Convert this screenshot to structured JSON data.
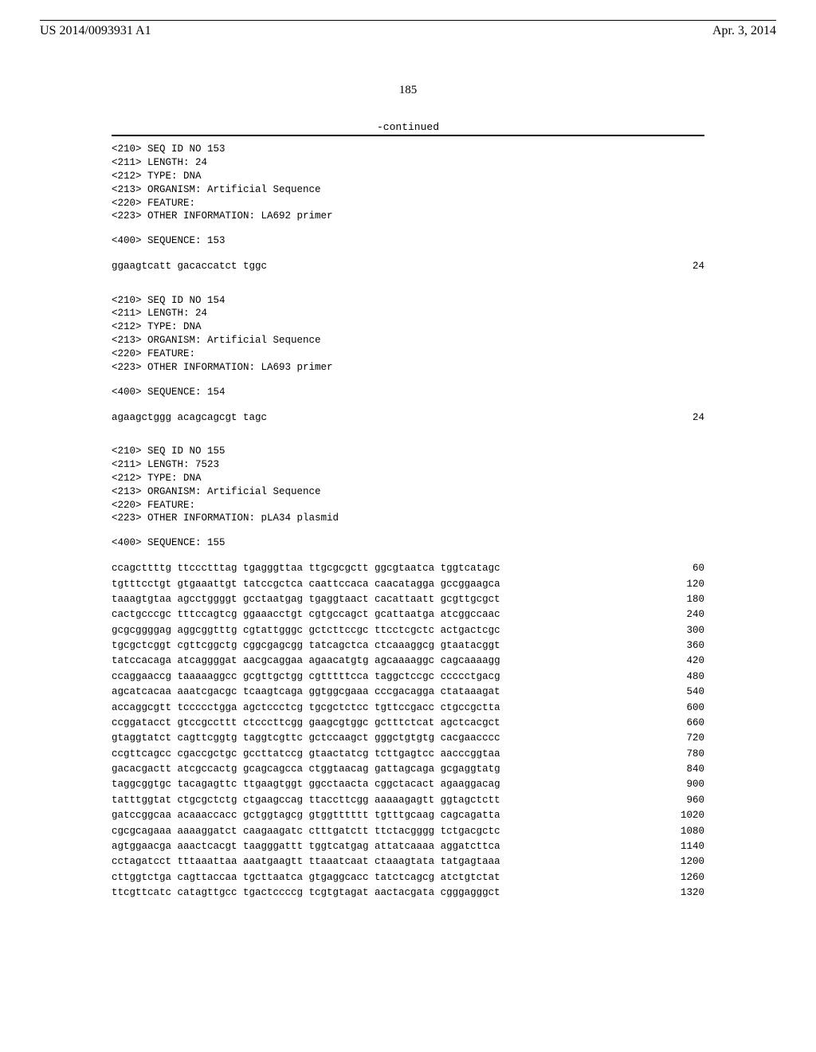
{
  "header": {
    "patent_no": "US 2014/0093931 A1",
    "date": "Apr. 3, 2014",
    "page_number": "185",
    "continued_label": "-continued"
  },
  "blocks": [
    {
      "lines": [
        "<210> SEQ ID NO 153",
        "<211> LENGTH: 24",
        "<212> TYPE: DNA",
        "<213> ORGANISM: Artificial Sequence",
        "<220> FEATURE:",
        "<223> OTHER INFORMATION: LA692 primer"
      ],
      "seq_header": "<400> SEQUENCE: 153",
      "rows": [
        {
          "seq": "ggaagtcatt gacaccatct tggc",
          "num": "24"
        }
      ]
    },
    {
      "lines": [
        "<210> SEQ ID NO 154",
        "<211> LENGTH: 24",
        "<212> TYPE: DNA",
        "<213> ORGANISM: Artificial Sequence",
        "<220> FEATURE:",
        "<223> OTHER INFORMATION: LA693 primer"
      ],
      "seq_header": "<400> SEQUENCE: 154",
      "rows": [
        {
          "seq": "agaagctggg acagcagcgt tagc",
          "num": "24"
        }
      ]
    },
    {
      "lines": [
        "<210> SEQ ID NO 155",
        "<211> LENGTH: 7523",
        "<212> TYPE: DNA",
        "<213> ORGANISM: Artificial Sequence",
        "<220> FEATURE:",
        "<223> OTHER INFORMATION: pLA34 plasmid"
      ],
      "seq_header": "<400> SEQUENCE: 155",
      "rows": [
        {
          "seq": "ccagcttttg ttccctttag tgagggttaa ttgcgcgctt ggcgtaatca tggtcatagc",
          "num": "60"
        },
        {
          "seq": "tgtttcctgt gtgaaattgt tatccgctca caattccaca caacatagga gccggaagca",
          "num": "120"
        },
        {
          "seq": "taaagtgtaa agcctggggt gcctaatgag tgaggtaact cacattaatt gcgttgcgct",
          "num": "180"
        },
        {
          "seq": "cactgcccgc tttccagtcg ggaaacctgt cgtgccagct gcattaatga atcggccaac",
          "num": "240"
        },
        {
          "seq": "gcgcggggag aggcggtttg cgtattgggc gctcttccgc ttcctcgctc actgactcgc",
          "num": "300"
        },
        {
          "seq": "tgcgctcggt cgttcggctg cggcgagcgg tatcagctca ctcaaaggcg gtaatacggt",
          "num": "360"
        },
        {
          "seq": "tatccacaga atcaggggat aacgcaggaa agaacatgtg agcaaaaggc cagcaaaagg",
          "num": "420"
        },
        {
          "seq": "ccaggaaccg taaaaaggcc gcgttgctgg cgtttttcca taggctccgc ccccctgacg",
          "num": "480"
        },
        {
          "seq": "agcatcacaa aaatcgacgc tcaagtcaga ggtggcgaaa cccgacagga ctataaagat",
          "num": "540"
        },
        {
          "seq": "accaggcgtt tccccctgga agctccctcg tgcgctctcc tgttccgacc ctgccgctta",
          "num": "600"
        },
        {
          "seq": "ccggatacct gtccgccttt ctcccttcgg gaagcgtggc gctttctcat agctcacgct",
          "num": "660"
        },
        {
          "seq": "gtaggtatct cagttcggtg taggtcgttc gctccaagct gggctgtgtg cacgaacccc",
          "num": "720"
        },
        {
          "seq": "ccgttcagcc cgaccgctgc gccttatccg gtaactatcg tcttgagtcc aacccggtaa",
          "num": "780"
        },
        {
          "seq": "gacacgactt atcgccactg gcagcagcca ctggtaacag gattagcaga gcgaggtatg",
          "num": "840"
        },
        {
          "seq": "taggcggtgc tacagagttc ttgaagtggt ggcctaacta cggctacact agaaggacag",
          "num": "900"
        },
        {
          "seq": "tatttggtat ctgcgctctg ctgaagccag ttaccttcgg aaaaagagtt ggtagctctt",
          "num": "960"
        },
        {
          "seq": "gatccggcaa acaaaccacc gctggtagcg gtggtttttt tgtttgcaag cagcagatta",
          "num": "1020"
        },
        {
          "seq": "cgcgcagaaa aaaaggatct caagaagatc ctttgatctt ttctacgggg tctgacgctc",
          "num": "1080"
        },
        {
          "seq": "agtggaacga aaactcacgt taagggattt tggtcatgag attatcaaaa aggatcttca",
          "num": "1140"
        },
        {
          "seq": "cctagatcct tttaaattaa aaatgaagtt ttaaatcaat ctaaagtata tatgagtaaa",
          "num": "1200"
        },
        {
          "seq": "cttggtctga cagttaccaa tgcttaatca gtgaggcacc tatctcagcg atctgtctat",
          "num": "1260"
        },
        {
          "seq": "ttcgttcatc catagttgcc tgactccccg tcgtgtagat aactacgata cgggagggct",
          "num": "1320"
        }
      ]
    }
  ]
}
